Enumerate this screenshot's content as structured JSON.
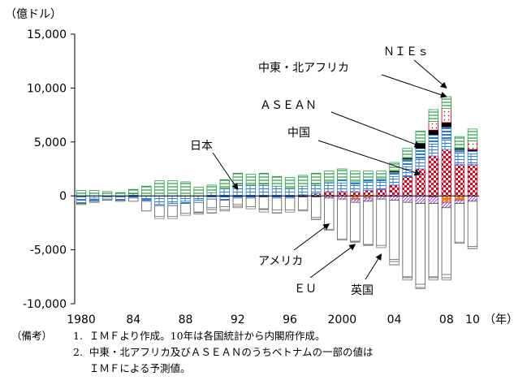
{
  "chart_data": {
    "type": "bar",
    "stacked": true,
    "ylabel": "（億ドル）",
    "xlabel": "（年）",
    "ylim": [
      -10000,
      15000
    ],
    "y_ticks": [
      15000,
      10000,
      5000,
      0,
      -5000,
      -10000
    ],
    "y_tick_labels": [
      "15,000",
      "10,000",
      "5,000",
      "0",
      "-5,000",
      "-10,000"
    ],
    "x_tick_labels": [
      {
        "year": 1980,
        "label": "1980"
      },
      {
        "year": 1984,
        "label": "84"
      },
      {
        "year": 1988,
        "label": "88"
      },
      {
        "year": 1992,
        "label": "92"
      },
      {
        "year": 1996,
        "label": "96"
      },
      {
        "year": 2000,
        "label": "2000"
      },
      {
        "year": 2004,
        "label": "04"
      },
      {
        "year": 2008,
        "label": "08"
      },
      {
        "year": 2010,
        "label": "10"
      }
    ],
    "years": [
      1980,
      1981,
      1982,
      1983,
      1984,
      1985,
      1986,
      1987,
      1988,
      1989,
      1990,
      1991,
      1992,
      1993,
      1994,
      1995,
      1996,
      1997,
      1998,
      1999,
      2000,
      2001,
      2002,
      2003,
      2004,
      2005,
      2006,
      2007,
      2008,
      2009,
      2010
    ],
    "series": [
      {
        "key": "china",
        "pattern": "china",
        "values": [
          0,
          0,
          0,
          0,
          0,
          0,
          0,
          0,
          0,
          0,
          0,
          0,
          0,
          0,
          0,
          0,
          0,
          100,
          200,
          400,
          400,
          400,
          500,
          600,
          1000,
          1800,
          2500,
          3700,
          4300,
          2900,
          2900
        ]
      },
      {
        "key": "japan",
        "pattern": "japan",
        "values": [
          -100,
          -200,
          -100,
          -100,
          200,
          -300,
          -800,
          -700,
          -500,
          -400,
          300,
          700,
          1100,
          1000,
          1100,
          900,
          700,
          800,
          900,
          800,
          800,
          700,
          800,
          800,
          800,
          900,
          1000,
          1100,
          900,
          1100,
          1000
        ]
      },
      {
        "key": "me_na",
        "pattern": "me_na",
        "values": [
          -600,
          -300,
          -200,
          -300,
          -200,
          -200,
          -100,
          -200,
          -200,
          -200,
          -300,
          -400,
          -200,
          -200,
          -100,
          -200,
          -200,
          -100,
          -100,
          100,
          300,
          200,
          200,
          200,
          400,
          700,
          900,
          900,
          1200,
          300,
          300
        ]
      },
      {
        "key": "asean",
        "pattern": "asean",
        "values": [
          0,
          0,
          0,
          0,
          0,
          0,
          0,
          0,
          0,
          0,
          0,
          0,
          0,
          0,
          0,
          0,
          0,
          0,
          0,
          0,
          0,
          0,
          0,
          0,
          100,
          100,
          500,
          400,
          400,
          100,
          100
        ]
      },
      {
        "key": "nies",
        "pattern": "nies",
        "values": [
          0,
          0,
          0,
          0,
          0,
          0,
          0,
          0,
          0,
          0,
          0,
          0,
          0,
          0,
          0,
          0,
          0,
          0,
          0,
          0,
          0,
          0,
          0,
          0,
          0,
          0,
          0,
          800,
          1300,
          0,
          800
        ]
      },
      {
        "key": "other_pos",
        "pattern": "other_pos",
        "values": [
          500,
          500,
          400,
          300,
          400,
          900,
          1400,
          1400,
          1300,
          800,
          700,
          800,
          1000,
          1000,
          1000,
          900,
          1000,
          1000,
          1000,
          1000,
          1000,
          1000,
          800,
          700,
          800,
          900,
          1100,
          1100,
          1100,
          1100,
          1100
        ]
      },
      {
        "key": "eu",
        "pattern": "eu",
        "values": [
          0,
          0,
          0,
          0,
          0,
          0,
          0,
          0,
          0,
          0,
          0,
          0,
          0,
          0,
          0,
          0,
          0,
          0,
          0,
          0,
          0,
          -300,
          -200,
          0,
          0,
          0,
          0,
          -100,
          -600,
          -400,
          0
        ]
      },
      {
        "key": "uk",
        "pattern": "uk",
        "values": [
          0,
          0,
          0,
          0,
          0,
          0,
          0,
          0,
          0,
          0,
          0,
          0,
          0,
          0,
          0,
          0,
          0,
          0,
          0,
          -200,
          -300,
          -300,
          -300,
          -300,
          -400,
          -600,
          -700,
          -600,
          -500,
          -300,
          -500
        ]
      },
      {
        "key": "america",
        "pattern": "america",
        "values": [
          -100,
          -100,
          -100,
          -100,
          -300,
          -900,
          -1000,
          -1000,
          -900,
          -900,
          -800,
          -600,
          -600,
          -800,
          -1100,
          -1100,
          -1100,
          -1200,
          -1900,
          -2900,
          -3700,
          -3600,
          -4000,
          -4300,
          -5500,
          -6900,
          -7500,
          -6800,
          -6200,
          -3600,
          -4200
        ]
      },
      {
        "key": "other_neg",
        "pattern": "other_neg",
        "values": [
          0,
          0,
          0,
          0,
          0,
          0,
          -200,
          -200,
          -200,
          -200,
          -500,
          -400,
          -300,
          -200,
          -300,
          -300,
          -200,
          -100,
          -200,
          -100,
          -100,
          -100,
          -100,
          -200,
          -500,
          -300,
          -400,
          -300,
          -500,
          -100,
          -200
        ]
      }
    ],
    "annotations": [
      {
        "text": "ＮＩＥｓ",
        "year": 2008,
        "value": 10000
      },
      {
        "text": "中東・北アフリカ",
        "year": 2008,
        "value": 9200
      },
      {
        "text": "ＡＳＥＡＮ",
        "year": 2006,
        "value": 4600
      },
      {
        "text": "中国",
        "year": 2006,
        "value": 2000
      },
      {
        "text": "日本",
        "year": 1992,
        "value": 600
      },
      {
        "text": "アメリカ",
        "year": 1999,
        "value": -2600
      },
      {
        "text": "ＥＵ",
        "year": 2001,
        "value": -4500
      },
      {
        "text": "英国",
        "year": 2003,
        "value": -5400
      }
    ]
  },
  "notes": {
    "label": "（備考）",
    "line1": "1.  ＩＭＦより作成。10年は各国統計から内閣府作成。",
    "line2": "2.  中東・北アフリカ及びＡＳＥＡＮのうちベトナムの一部の値は",
    "line3": "     ＩＭＦによる予測値。"
  },
  "colors": {
    "china": "#e8001c",
    "america": "#555555",
    "eu": "#f07820",
    "uk": "#8a46c8",
    "me_na": "#2e7be0",
    "asean": "#000000",
    "nies": "#c00018",
    "other_pos": "#20a040",
    "other_neg": "#777777"
  }
}
